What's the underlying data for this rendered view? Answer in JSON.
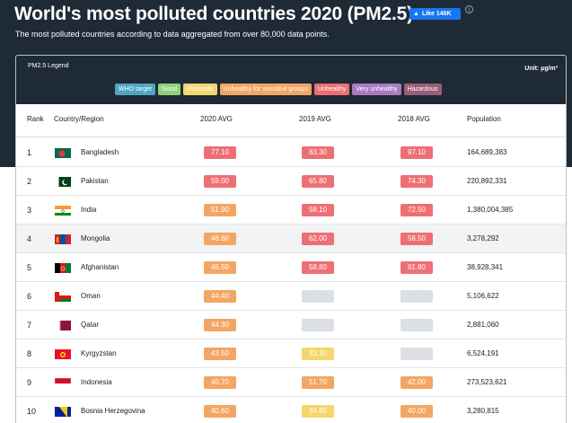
{
  "header": {
    "title": "World's most polluted countries 2020 (PM2.5)",
    "like_label": "Like 146K",
    "info_symbol": "i",
    "subtitle": "The most polluted countries according to data aggregated from over 80,000 data points."
  },
  "legend": {
    "title": "PM2.5 Legend",
    "unit": "Unit: µg/m³",
    "items": [
      {
        "label": "WHO target",
        "color": "#4fa7c1"
      },
      {
        "label": "Good",
        "color": "#8fd17a"
      },
      {
        "label": "Moderate",
        "color": "#f6d66b"
      },
      {
        "label": "Unhealthy for sensitive groups",
        "color": "#f3a663"
      },
      {
        "label": "Unhealthy",
        "color": "#ee6f73"
      },
      {
        "label": "Very unhealthy",
        "color": "#a87bc1"
      },
      {
        "label": "Hazardous",
        "color": "#9b5e78"
      }
    ]
  },
  "table": {
    "columns": [
      "Rank",
      "Country/Region",
      "2020 AVG",
      "2019 AVG",
      "2018 AVG",
      "Population"
    ],
    "rows": [
      {
        "rank": "1",
        "country": "Bangladesh",
        "flag": "bangladesh-flag-icon",
        "v2020": "77.10",
        "v2019": "83.30",
        "v2018": "97.10",
        "population": "164,689,383",
        "c2020": "#ee6f73",
        "c2019": "#ee6f73",
        "c2018": "#ee6f73"
      },
      {
        "rank": "2",
        "country": "Pakistan",
        "flag": "pakistan-flag-icon",
        "v2020": "59.00",
        "v2019": "65.80",
        "v2018": "74.30",
        "population": "220,892,331",
        "c2020": "#ee6f73",
        "c2019": "#ee6f73",
        "c2018": "#ee6f73"
      },
      {
        "rank": "3",
        "country": "India",
        "flag": "india-flag-icon",
        "v2020": "51.90",
        "v2019": "58.10",
        "v2018": "72.50",
        "population": "1,380,004,385",
        "c2020": "#f3a663",
        "c2019": "#ee6f73",
        "c2018": "#ee6f73"
      },
      {
        "rank": "4",
        "country": "Mongolia",
        "flag": "mongolia-flag-icon",
        "v2020": "46.60",
        "v2019": "62.00",
        "v2018": "58.50",
        "population": "3,278,292",
        "c2020": "#f3a663",
        "c2019": "#ee6f73",
        "c2018": "#ee6f73"
      },
      {
        "rank": "5",
        "country": "Afghanistan",
        "flag": "afghanistan-flag-icon",
        "v2020": "46.50",
        "v2019": "58.80",
        "v2018": "61.80",
        "population": "38,928,341",
        "c2020": "#f3a663",
        "c2019": "#ee6f73",
        "c2018": "#ee6f73"
      },
      {
        "rank": "6",
        "country": "Oman",
        "flag": "oman-flag-icon",
        "v2020": "44.40",
        "v2019": "-",
        "v2018": "-",
        "population": "5,106,622",
        "c2020": "#f3a663",
        "c2019": "#dcdfe3",
        "c2018": "#dcdfe3"
      },
      {
        "rank": "7",
        "country": "Qatar",
        "flag": "qatar-flag-icon",
        "v2020": "44.30",
        "v2019": "-",
        "v2018": "-",
        "population": "2,881,060",
        "c2020": "#f3a663",
        "c2019": "#dcdfe3",
        "c2018": "#dcdfe3"
      },
      {
        "rank": "8",
        "country": "Kyrgyzstan",
        "flag": "kyrgyzstan-flag-icon",
        "v2020": "43.50",
        "v2019": "33.20",
        "v2018": "-",
        "population": "6,524,191",
        "c2020": "#f3a663",
        "c2019": "#f6d66b",
        "c2018": "#dcdfe3"
      },
      {
        "rank": "9",
        "country": "Indonesia",
        "flag": "indonesia-flag-icon",
        "v2020": "40.70",
        "v2019": "51.70",
        "v2018": "42.00",
        "population": "273,523,621",
        "c2020": "#f3a663",
        "c2019": "#f3a663",
        "c2018": "#f3a663"
      },
      {
        "rank": "10",
        "country": "Bosnia Herzegovina",
        "flag": "bosnia-herzegovina-flag-icon",
        "v2020": "40.60",
        "v2019": "34.60",
        "v2018": "40.00",
        "population": "3,280,815",
        "c2020": "#f3a663",
        "c2019": "#f6d66b",
        "c2018": "#f3a663"
      }
    ]
  }
}
